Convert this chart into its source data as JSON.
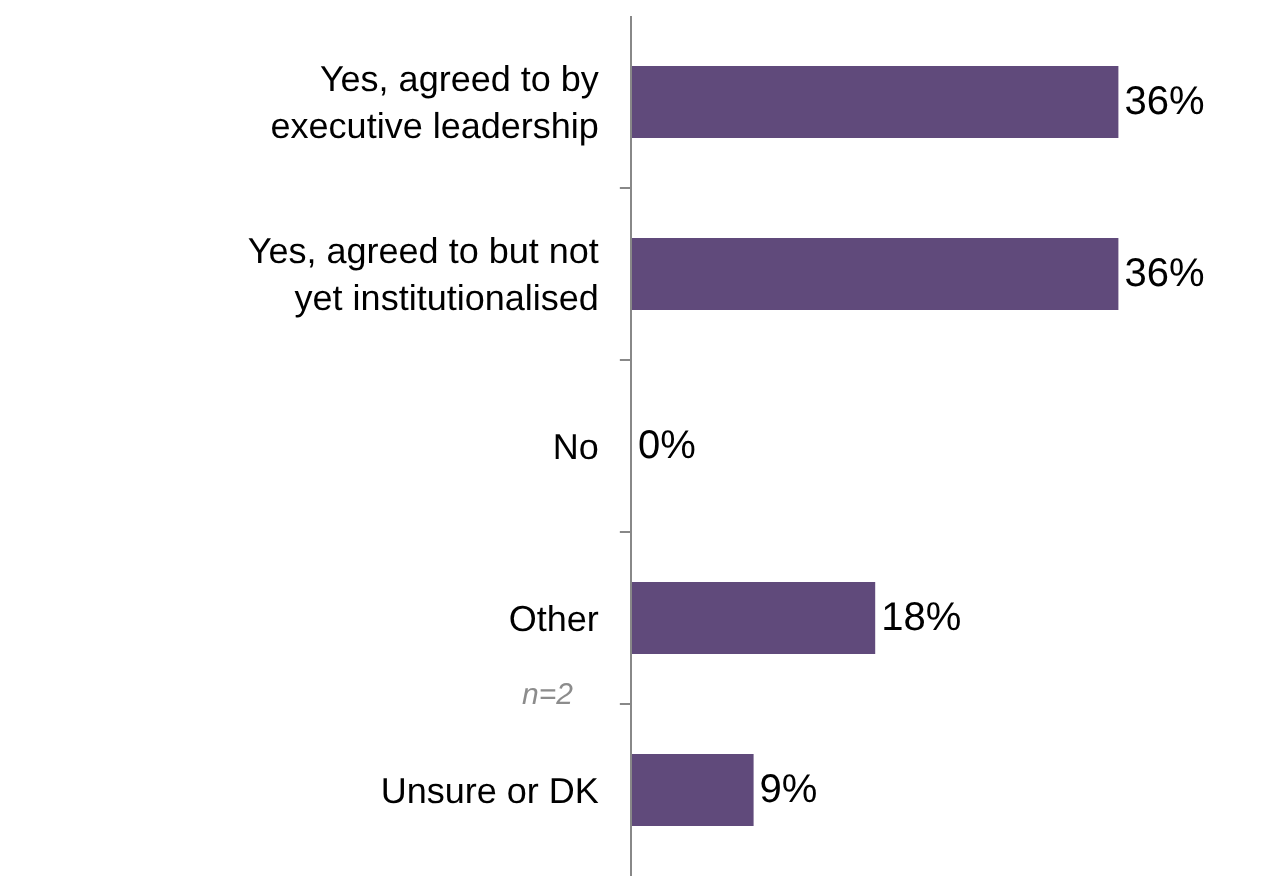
{
  "chart_data": {
    "type": "bar",
    "orientation": "horizontal",
    "categories": [
      "Yes, agreed to by executive leadership",
      "Yes, agreed to but not yet institutionalised",
      "No",
      "Other",
      "Unsure or DK"
    ],
    "values": [
      36,
      36,
      0,
      18,
      9
    ],
    "value_labels": [
      "36%",
      "36%",
      "0%",
      "18%",
      "9%"
    ],
    "color": "#604a7b",
    "tick_labels": "y",
    "annotations": [
      "n=2"
    ],
    "legend": false
  }
}
